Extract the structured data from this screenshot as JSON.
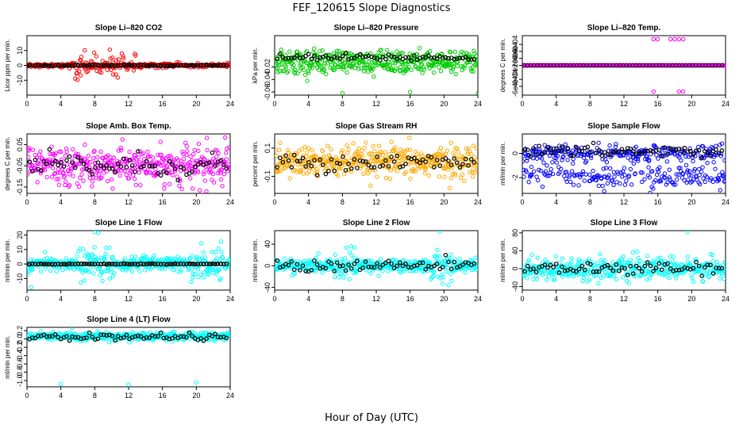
{
  "figure": {
    "title": "FEF_120615  Slope Diagnostics",
    "xlabel": "Hour of Day (UTC)"
  },
  "chart_data": [
    {
      "type": "scatter",
      "title": "Slope Li–820 CO2",
      "ylabel": "Licor ppm per min.",
      "xlim": [
        0,
        24
      ],
      "ylim": [
        -20,
        20
      ],
      "xticks": [
        0,
        4,
        8,
        12,
        16,
        20,
        24
      ],
      "yticks": [
        -10,
        0,
        10
      ],
      "ytick_labels": [
        "-10",
        "0",
        "10"
      ],
      "color": "#ff0000",
      "pattern": "co2",
      "anchor_x": [],
      "anchor_y": []
    },
    {
      "type": "scatter",
      "title": "Slope Li–820 Pressure",
      "ylabel": "kPa per min.",
      "xlim": [
        0,
        24
      ],
      "ylim": [
        -0.065,
        0.03
      ],
      "xticks": [
        0,
        4,
        8,
        12,
        16,
        20,
        24
      ],
      "yticks": [
        -0.06,
        -0.04,
        -0.02
      ],
      "ytick_labels": [
        "-0.06",
        "-0.04",
        "-0.02"
      ],
      "color": "#00cc00",
      "pattern": "pressure",
      "anchor_x": [
        8,
        16,
        24
      ],
      "anchor_y": [
        -0.062,
        -0.06,
        -0.062
      ]
    },
    {
      "type": "scatter",
      "title": "Slope Li–820 Temp.",
      "ylabel": "degrees C per min.",
      "xlim": [
        0,
        24
      ],
      "ylim": [
        -0.00085,
        0.00085
      ],
      "xticks": [
        0,
        4,
        8,
        12,
        16,
        20,
        24
      ],
      "yticks": [
        -0.0006,
        -0.0004,
        0,
        0.0002,
        0.0004,
        0.0006
      ],
      "ytick_labels": [
        "-6e-04",
        "-4e-04",
        "0e+00",
        "2e-04",
        "4e-04",
        "6e-04"
      ],
      "color": "#ff00ff",
      "pattern": "temp",
      "anchor_x": [
        15.5,
        16,
        17.5,
        18,
        18.5,
        19,
        15.5,
        18.5,
        19
      ],
      "anchor_y": [
        0.00075,
        0.00075,
        0.00075,
        0.00075,
        0.00075,
        0.00075,
        -0.00075,
        -0.00075,
        -0.00075
      ]
    },
    {
      "type": "scatter",
      "title": "Slope Amb. Box Temp.",
      "ylabel": "degrees C per min.",
      "xlim": [
        0,
        24
      ],
      "ylim": [
        -0.18,
        0.1
      ],
      "xticks": [
        0,
        4,
        8,
        12,
        16,
        20,
        24
      ],
      "yticks": [
        -0.15,
        -0.05,
        0.05
      ],
      "ytick_labels": [
        "-0.15",
        "-0.05",
        "0.05"
      ],
      "color": "#ff00ff",
      "pattern": "box",
      "anchor_x": [],
      "anchor_y": []
    },
    {
      "type": "scatter",
      "title": "Slope Gas Stream RH",
      "ylabel": "percent per min.",
      "xlim": [
        0,
        24
      ],
      "ylim": [
        -0.22,
        0.2
      ],
      "xticks": [
        0,
        4,
        8,
        12,
        16,
        20,
        24
      ],
      "yticks": [
        -0.1,
        0.1
      ],
      "ytick_labels": [
        "-0.1",
        "0.1"
      ],
      "color": "#ffaa00",
      "pattern": "rh",
      "anchor_x": [],
      "anchor_y": []
    },
    {
      "type": "scatter",
      "title": "Slope Sample Flow",
      "ylabel": "ml/min per min.",
      "xlim": [
        0,
        24
      ],
      "ylim": [
        -3.3,
        1.6
      ],
      "xticks": [
        0,
        4,
        8,
        12,
        16,
        20,
        24
      ],
      "yticks": [
        -2,
        0
      ],
      "ytick_labels": [
        "-2",
        "0"
      ],
      "color": "#0000ff",
      "pattern": "flow",
      "anchor_x": [],
      "anchor_y": []
    },
    {
      "type": "scatter",
      "title": "Slope Line 1 Flow",
      "ylabel": "ml/min per min.",
      "xlim": [
        0,
        24
      ],
      "ylim": [
        -18,
        23
      ],
      "xticks": [
        0,
        4,
        8,
        12,
        16,
        20,
        24
      ],
      "yticks": [
        -10,
        0,
        10,
        20
      ],
      "ytick_labels": [
        "-10",
        "0",
        "10",
        "20"
      ],
      "color": "#00ffff",
      "pattern": "line1",
      "anchor_x": [
        8,
        0.5
      ],
      "anchor_y": [
        22,
        -16
      ]
    },
    {
      "type": "scatter",
      "title": "Slope Line 2 Flow",
      "ylabel": "ml/min per min.",
      "xlim": [
        0,
        24
      ],
      "ylim": [
        -45,
        65
      ],
      "xticks": [
        0,
        4,
        8,
        12,
        16,
        20,
        24
      ],
      "yticks": [
        -40,
        0,
        40
      ],
      "ytick_labels": [
        "-40",
        "0",
        "40"
      ],
      "color": "#00ffff",
      "pattern": "line2",
      "anchor_x": [
        19.5
      ],
      "anchor_y": [
        63
      ]
    },
    {
      "type": "scatter",
      "title": "Slope Line 3 Flow",
      "ylabel": "ml/min per min.",
      "xlim": [
        0,
        24
      ],
      "ylim": [
        -48,
        85
      ],
      "xticks": [
        0,
        4,
        8,
        12,
        16,
        20,
        24
      ],
      "yticks": [
        -40,
        0,
        40,
        80
      ],
      "ytick_labels": [
        "-40",
        "0",
        "40",
        "80"
      ],
      "color": "#00ffff",
      "pattern": "line3",
      "anchor_x": [
        19.5
      ],
      "anchor_y": [
        82
      ]
    },
    {
      "type": "scatter",
      "title": "Slope Line 4 (LT) Flow",
      "ylabel": "ml/min per min.",
      "xlim": [
        0,
        24
      ],
      "ylim": [
        -1.15,
        0.28
      ],
      "xticks": [
        0,
        4,
        8,
        12,
        16,
        20,
        24
      ],
      "yticks": [
        -1,
        -0.8,
        -0.6,
        -0.4,
        -0.2,
        0,
        0.2
      ],
      "ytick_labels": [
        "-1.0",
        "-0.8",
        "-0.6",
        "-0.4",
        "-0.2",
        "0.0",
        "0.2"
      ],
      "color": "#00ffff",
      "pattern": "line4",
      "anchor_x": [
        4,
        12,
        20
      ],
      "anchor_y": [
        -1.08,
        -1.1,
        -1.05
      ]
    }
  ]
}
